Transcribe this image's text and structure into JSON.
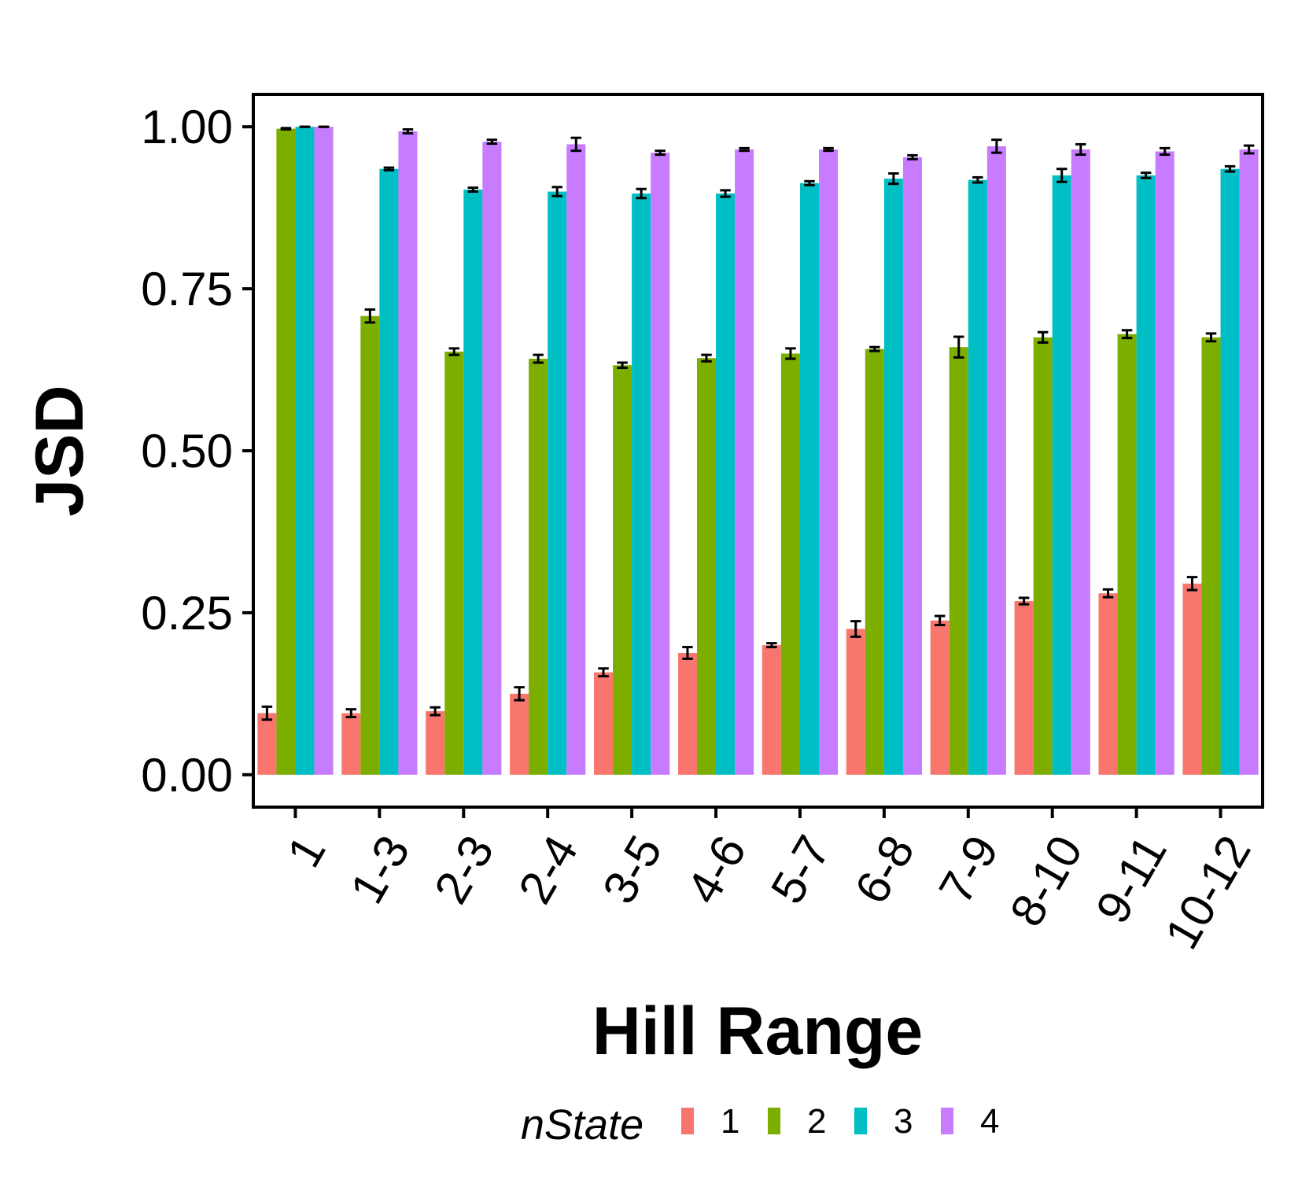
{
  "chart_data": {
    "type": "bar",
    "xlabel": "Hill Range",
    "ylabel": "JSD",
    "ylim": [
      -0.05,
      1.05
    ],
    "yticks": [
      "0.00",
      "0.25",
      "0.50",
      "0.75",
      "1.00"
    ],
    "ytick_values": [
      0,
      0.25,
      0.5,
      0.75,
      1.0
    ],
    "categories": [
      "1",
      "1-3",
      "2-3",
      "2-4",
      "3-5",
      "4-6",
      "5-7",
      "6-8",
      "7-9",
      "8-10",
      "9-11",
      "10-12"
    ],
    "legend": {
      "title": "nState",
      "position": "bottom"
    },
    "grid": false,
    "series": [
      {
        "name": "1",
        "color": "#F8766D",
        "values": [
          0.095,
          0.095,
          0.098,
          0.125,
          0.158,
          0.188,
          0.2,
          0.225,
          0.238,
          0.268,
          0.28,
          0.295
        ],
        "errors": [
          0.01,
          0.006,
          0.006,
          0.01,
          0.006,
          0.009,
          0.003,
          0.012,
          0.007,
          0.005,
          0.006,
          0.01
        ]
      },
      {
        "name": "2",
        "color": "#7CAE00",
        "values": [
          0.997,
          0.708,
          0.653,
          0.642,
          0.632,
          0.643,
          0.65,
          0.657,
          0.66,
          0.675,
          0.68,
          0.675
        ],
        "errors": [
          0.001,
          0.01,
          0.005,
          0.006,
          0.004,
          0.005,
          0.008,
          0.003,
          0.016,
          0.008,
          0.006,
          0.006
        ]
      },
      {
        "name": "3",
        "color": "#00BFC4",
        "values": [
          1.0,
          0.935,
          0.903,
          0.9,
          0.897,
          0.897,
          0.913,
          0.92,
          0.918,
          0.925,
          0.925,
          0.935
        ],
        "errors": [
          0.0,
          0.002,
          0.003,
          0.007,
          0.007,
          0.005,
          0.003,
          0.008,
          0.004,
          0.01,
          0.004,
          0.004
        ]
      },
      {
        "name": "4",
        "color": "#C77CFF",
        "values": [
          1.0,
          0.993,
          0.977,
          0.973,
          0.96,
          0.965,
          0.965,
          0.953,
          0.97,
          0.965,
          0.962,
          0.965
        ],
        "errors": [
          0.0,
          0.003,
          0.003,
          0.01,
          0.003,
          0.002,
          0.002,
          0.003,
          0.01,
          0.008,
          0.005,
          0.006
        ]
      }
    ]
  }
}
